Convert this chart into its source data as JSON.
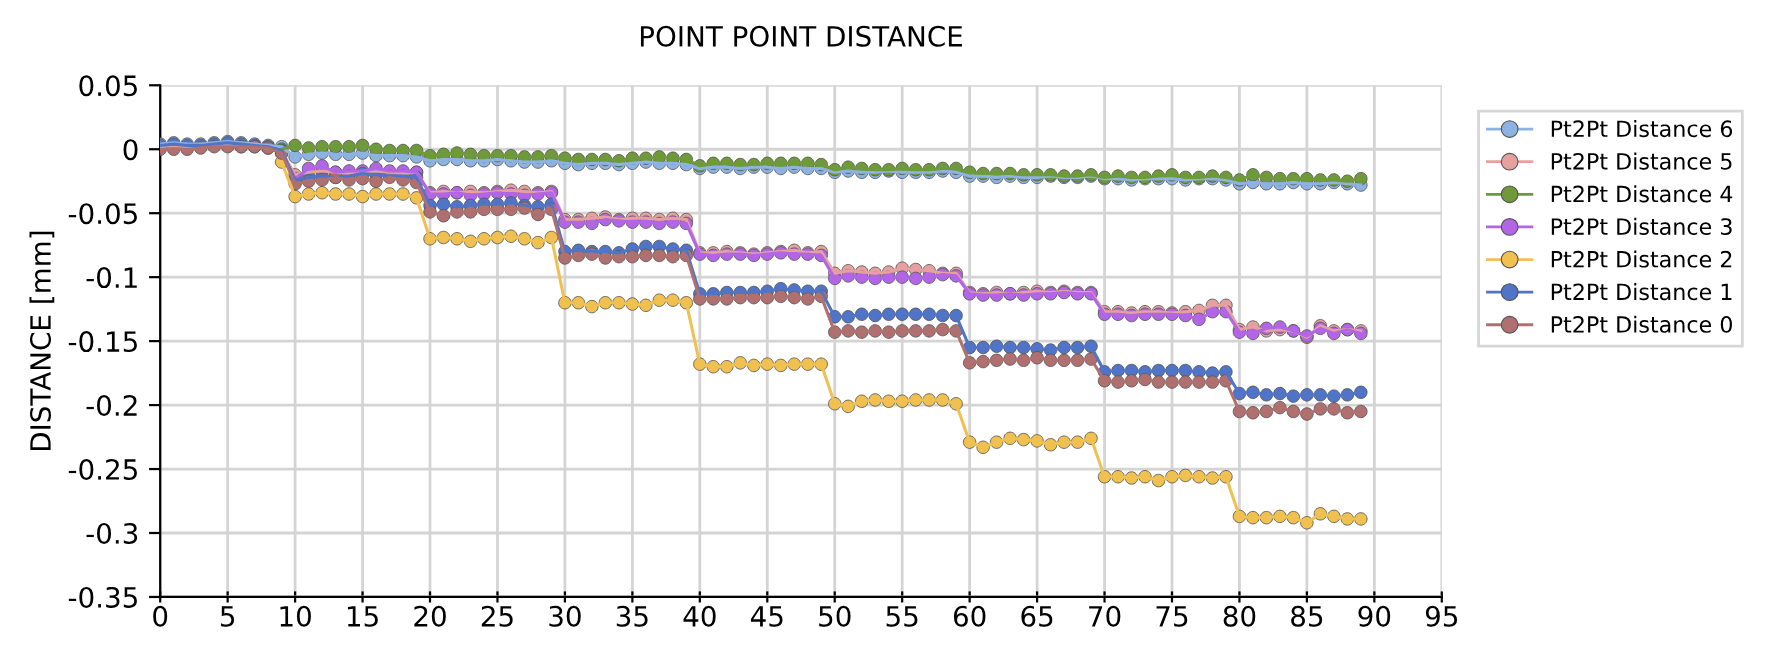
{
  "chart_data": {
    "type": "line",
    "title": "POINT POINT DISTANCE",
    "ylabel": "DISTANCE [mm]",
    "x": [
      0,
      1,
      2,
      3,
      4,
      5,
      6,
      7,
      8,
      9,
      10,
      11,
      12,
      13,
      14,
      15,
      16,
      17,
      18,
      19,
      20,
      21,
      22,
      23,
      24,
      25,
      26,
      27,
      28,
      29,
      30,
      31,
      32,
      33,
      34,
      35,
      36,
      37,
      38,
      39,
      40,
      41,
      42,
      43,
      44,
      45,
      46,
      47,
      48,
      49,
      50,
      51,
      52,
      53,
      54,
      55,
      56,
      57,
      58,
      59,
      60,
      61,
      62,
      63,
      64,
      65,
      66,
      67,
      68,
      69,
      70,
      71,
      72,
      73,
      74,
      75,
      76,
      77,
      78,
      79,
      80,
      81,
      82,
      83,
      84,
      85,
      86,
      87,
      88,
      89
    ],
    "xlim": [
      0,
      95
    ],
    "xticks": [
      0,
      5,
      10,
      15,
      20,
      25,
      30,
      35,
      40,
      45,
      50,
      55,
      60,
      65,
      70,
      75,
      80,
      85,
      90,
      95
    ],
    "ylim": [
      -0.35,
      0.05
    ],
    "yticks": [
      -0.35,
      -0.3,
      -0.25,
      -0.2,
      -0.15,
      -0.1,
      -0.05,
      0,
      0.05
    ],
    "grid": true,
    "legend": "right",
    "marker": "circle",
    "line_style": "solid",
    "series": [
      {
        "name": "Pt2Pt Distance 6",
        "color": "#8db3e2",
        "values": [
          0.004,
          0.005,
          0.004,
          0.004,
          0.005,
          0.006,
          0.005,
          0.004,
          0.003,
          0.002,
          -0.006,
          -0.004,
          -0.003,
          -0.004,
          -0.004,
          -0.003,
          -0.005,
          -0.005,
          -0.005,
          -0.006,
          -0.009,
          -0.008,
          -0.008,
          -0.009,
          -0.009,
          -0.008,
          -0.009,
          -0.01,
          -0.01,
          -0.009,
          -0.011,
          -0.012,
          -0.011,
          -0.011,
          -0.012,
          -0.011,
          -0.01,
          -0.011,
          -0.011,
          -0.012,
          -0.015,
          -0.014,
          -0.014,
          -0.015,
          -0.014,
          -0.014,
          -0.015,
          -0.014,
          -0.015,
          -0.015,
          -0.018,
          -0.017,
          -0.018,
          -0.018,
          -0.017,
          -0.018,
          -0.018,
          -0.018,
          -0.017,
          -0.018,
          -0.021,
          -0.021,
          -0.022,
          -0.021,
          -0.022,
          -0.022,
          -0.021,
          -0.022,
          -0.022,
          -0.021,
          -0.023,
          -0.023,
          -0.024,
          -0.023,
          -0.023,
          -0.023,
          -0.024,
          -0.023,
          -0.023,
          -0.024,
          -0.027,
          -0.026,
          -0.027,
          -0.027,
          -0.026,
          -0.027,
          -0.027,
          -0.026,
          -0.027,
          -0.028
        ]
      },
      {
        "name": "Pt2Pt Distance 5",
        "color": "#e6a0a0",
        "values": [
          0.002,
          0.003,
          0.002,
          0.002,
          0.003,
          0.003,
          0.002,
          0.002,
          0.001,
          -0.002,
          -0.02,
          -0.018,
          -0.017,
          -0.018,
          -0.019,
          -0.018,
          -0.017,
          -0.018,
          -0.019,
          -0.018,
          -0.034,
          -0.033,
          -0.034,
          -0.033,
          -0.034,
          -0.033,
          -0.032,
          -0.033,
          -0.034,
          -0.033,
          -0.055,
          -0.055,
          -0.054,
          -0.053,
          -0.055,
          -0.054,
          -0.054,
          -0.055,
          -0.054,
          -0.055,
          -0.081,
          -0.081,
          -0.08,
          -0.081,
          -0.082,
          -0.081,
          -0.08,
          -0.079,
          -0.081,
          -0.08,
          -0.097,
          -0.095,
          -0.096,
          -0.097,
          -0.096,
          -0.093,
          -0.094,
          -0.095,
          -0.097,
          -0.097,
          -0.112,
          -0.113,
          -0.112,
          -0.113,
          -0.112,
          -0.111,
          -0.112,
          -0.111,
          -0.112,
          -0.112,
          -0.127,
          -0.127,
          -0.128,
          -0.127,
          -0.127,
          -0.128,
          -0.127,
          -0.126,
          -0.122,
          -0.122,
          -0.141,
          -0.139,
          -0.142,
          -0.141,
          -0.142,
          -0.147,
          -0.138,
          -0.142,
          -0.141,
          -0.142
        ]
      },
      {
        "name": "Pt2Pt Distance 4",
        "color": "#6f9a3a",
        "values": [
          null,
          null,
          null,
          null,
          null,
          null,
          null,
          null,
          null,
          0.0,
          0.003,
          0.001,
          0.002,
          0.002,
          0.002,
          0.003,
          0.0,
          -0.001,
          -0.001,
          -0.001,
          -0.005,
          -0.004,
          -0.003,
          -0.004,
          -0.005,
          -0.005,
          -0.005,
          -0.006,
          -0.006,
          -0.005,
          -0.007,
          -0.008,
          -0.008,
          -0.008,
          -0.009,
          -0.007,
          -0.007,
          -0.006,
          -0.007,
          -0.008,
          -0.013,
          -0.011,
          -0.011,
          -0.012,
          -0.012,
          -0.011,
          -0.011,
          -0.011,
          -0.011,
          -0.012,
          -0.016,
          -0.014,
          -0.015,
          -0.016,
          -0.016,
          -0.015,
          -0.016,
          -0.016,
          -0.015,
          -0.015,
          -0.018,
          -0.019,
          -0.019,
          -0.019,
          -0.02,
          -0.02,
          -0.02,
          -0.021,
          -0.021,
          -0.02,
          -0.022,
          -0.021,
          -0.022,
          -0.022,
          -0.021,
          -0.02,
          -0.022,
          -0.022,
          -0.021,
          -0.022,
          -0.024,
          -0.02,
          -0.022,
          -0.023,
          -0.023,
          -0.023,
          -0.024,
          -0.024,
          -0.025,
          -0.023
        ]
      },
      {
        "name": "Pt2Pt Distance 3",
        "color": "#b266e6",
        "values": [
          null,
          null,
          null,
          null,
          null,
          null,
          null,
          null,
          null,
          -0.003,
          -0.023,
          -0.015,
          -0.013,
          -0.018,
          -0.017,
          -0.017,
          -0.015,
          -0.017,
          -0.017,
          -0.018,
          -0.035,
          -0.035,
          -0.034,
          -0.036,
          -0.035,
          -0.034,
          -0.035,
          -0.036,
          -0.035,
          -0.034,
          -0.057,
          -0.057,
          -0.058,
          -0.055,
          -0.056,
          -0.057,
          -0.057,
          -0.058,
          -0.057,
          -0.058,
          -0.082,
          -0.083,
          -0.082,
          -0.082,
          -0.083,
          -0.082,
          -0.081,
          -0.082,
          -0.082,
          -0.083,
          -0.101,
          -0.099,
          -0.1,
          -0.101,
          -0.1,
          -0.1,
          -0.101,
          -0.1,
          -0.098,
          -0.099,
          -0.113,
          -0.114,
          -0.114,
          -0.113,
          -0.114,
          -0.113,
          -0.113,
          -0.112,
          -0.113,
          -0.113,
          -0.129,
          -0.129,
          -0.13,
          -0.129,
          -0.129,
          -0.129,
          -0.13,
          -0.133,
          -0.127,
          -0.127,
          -0.143,
          -0.144,
          -0.14,
          -0.139,
          -0.142,
          -0.146,
          -0.14,
          -0.144,
          -0.141,
          -0.144
        ]
      },
      {
        "name": "Pt2Pt Distance 2",
        "color": "#f0c050",
        "values": [
          null,
          null,
          null,
          null,
          null,
          null,
          null,
          null,
          null,
          -0.01,
          -0.037,
          -0.035,
          -0.034,
          -0.035,
          -0.035,
          -0.037,
          -0.035,
          -0.035,
          -0.035,
          -0.038,
          -0.07,
          -0.069,
          -0.07,
          -0.072,
          -0.07,
          -0.069,
          -0.068,
          -0.07,
          -0.073,
          -0.069,
          -0.12,
          -0.12,
          -0.123,
          -0.12,
          -0.12,
          -0.121,
          -0.122,
          -0.118,
          -0.118,
          -0.12,
          -0.168,
          -0.17,
          -0.17,
          -0.167,
          -0.169,
          -0.168,
          -0.169,
          -0.168,
          -0.168,
          -0.168,
          -0.199,
          -0.201,
          -0.197,
          -0.196,
          -0.197,
          -0.197,
          -0.196,
          -0.196,
          -0.196,
          -0.199,
          -0.229,
          -0.233,
          -0.229,
          -0.226,
          -0.227,
          -0.228,
          -0.231,
          -0.229,
          -0.229,
          -0.226,
          -0.256,
          -0.256,
          -0.257,
          -0.256,
          -0.259,
          -0.256,
          -0.255,
          -0.256,
          -0.257,
          -0.256,
          -0.287,
          -0.288,
          -0.288,
          -0.287,
          -0.288,
          -0.292,
          -0.285,
          -0.287,
          -0.289,
          -0.289
        ]
      },
      {
        "name": "Pt2Pt Distance 1",
        "color": "#4f74c8",
        "values": [
          0.003,
          0.004,
          0.003,
          0.003,
          0.004,
          0.005,
          0.004,
          0.003,
          0.002,
          -0.001,
          -0.024,
          -0.022,
          -0.021,
          -0.022,
          -0.021,
          -0.019,
          -0.02,
          -0.021,
          -0.021,
          -0.022,
          -0.044,
          -0.043,
          -0.045,
          -0.044,
          -0.043,
          -0.043,
          -0.042,
          -0.044,
          -0.045,
          -0.043,
          -0.08,
          -0.079,
          -0.08,
          -0.08,
          -0.081,
          -0.078,
          -0.076,
          -0.076,
          -0.078,
          -0.079,
          -0.113,
          -0.113,
          -0.112,
          -0.112,
          -0.112,
          -0.111,
          -0.109,
          -0.11,
          -0.111,
          -0.111,
          -0.131,
          -0.131,
          -0.129,
          -0.13,
          -0.129,
          -0.129,
          -0.129,
          -0.129,
          -0.13,
          -0.13,
          -0.155,
          -0.155,
          -0.154,
          -0.155,
          -0.155,
          -0.156,
          -0.157,
          -0.155,
          -0.155,
          -0.154,
          -0.174,
          -0.173,
          -0.173,
          -0.174,
          -0.173,
          -0.173,
          -0.173,
          -0.174,
          -0.175,
          -0.174,
          -0.191,
          -0.19,
          -0.192,
          -0.191,
          -0.193,
          -0.192,
          -0.192,
          -0.193,
          -0.192,
          -0.19
        ]
      },
      {
        "name": "Pt2Pt Distance 0",
        "color": "#b07070",
        "values": [
          0.0,
          0.0,
          0.0,
          0.001,
          0.002,
          0.002,
          0.002,
          0.002,
          0.001,
          -0.003,
          -0.027,
          -0.025,
          -0.024,
          -0.022,
          -0.024,
          -0.023,
          -0.025,
          -0.022,
          -0.024,
          -0.026,
          -0.049,
          -0.052,
          -0.049,
          -0.049,
          -0.047,
          -0.047,
          -0.047,
          -0.046,
          -0.051,
          -0.047,
          -0.085,
          -0.083,
          -0.082,
          -0.085,
          -0.084,
          -0.084,
          -0.083,
          -0.083,
          -0.084,
          -0.083,
          -0.117,
          -0.117,
          -0.117,
          -0.116,
          -0.116,
          -0.116,
          -0.115,
          -0.116,
          -0.117,
          -0.115,
          -0.143,
          -0.142,
          -0.143,
          -0.142,
          -0.143,
          -0.142,
          -0.142,
          -0.142,
          -0.141,
          -0.142,
          -0.167,
          -0.166,
          -0.165,
          -0.164,
          -0.165,
          -0.163,
          -0.165,
          -0.165,
          -0.165,
          -0.164,
          -0.181,
          -0.182,
          -0.181,
          -0.18,
          -0.182,
          -0.182,
          -0.182,
          -0.182,
          -0.182,
          -0.181,
          -0.205,
          -0.206,
          -0.205,
          -0.202,
          -0.205,
          -0.207,
          -0.203,
          -0.203,
          -0.206,
          -0.205
        ]
      }
    ]
  }
}
